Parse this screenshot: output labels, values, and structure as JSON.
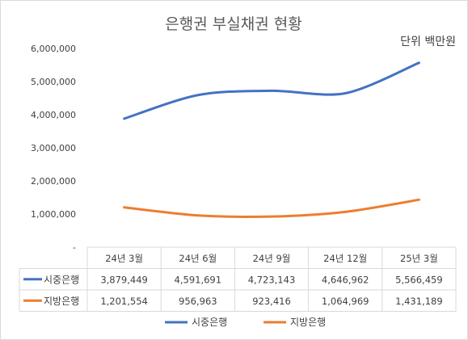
{
  "chart_data": {
    "type": "line",
    "title": "은행권 부실채권 현황",
    "unit_label": "단위 백만원",
    "categories": [
      "24년 3월",
      "24년 6월",
      "24년 9월",
      "24년 12월",
      "25년 3월"
    ],
    "y_ticks": [
      "6,000,000",
      "5,000,000",
      "4,000,000",
      "3,000,000",
      "2,000,000",
      "1,000,000",
      "-"
    ],
    "ylim": [
      0,
      6000000
    ],
    "grid": false,
    "legend_position": "bottom",
    "series": [
      {
        "name": "시중은행",
        "color": "#4472C4",
        "values": [
          3879449,
          4591691,
          4723143,
          4646962,
          5566459
        ],
        "labels": [
          "3,879,449",
          "4,591,691",
          "4,723,143",
          "4,646,962",
          "5,566,459"
        ]
      },
      {
        "name": "지방은행",
        "color": "#ED7D31",
        "values": [
          1201554,
          956963,
          923416,
          1064969,
          1431189
        ],
        "labels": [
          "1,201,554",
          "956,963",
          "923,416",
          "1,064,969",
          "1,431,189"
        ]
      }
    ]
  }
}
